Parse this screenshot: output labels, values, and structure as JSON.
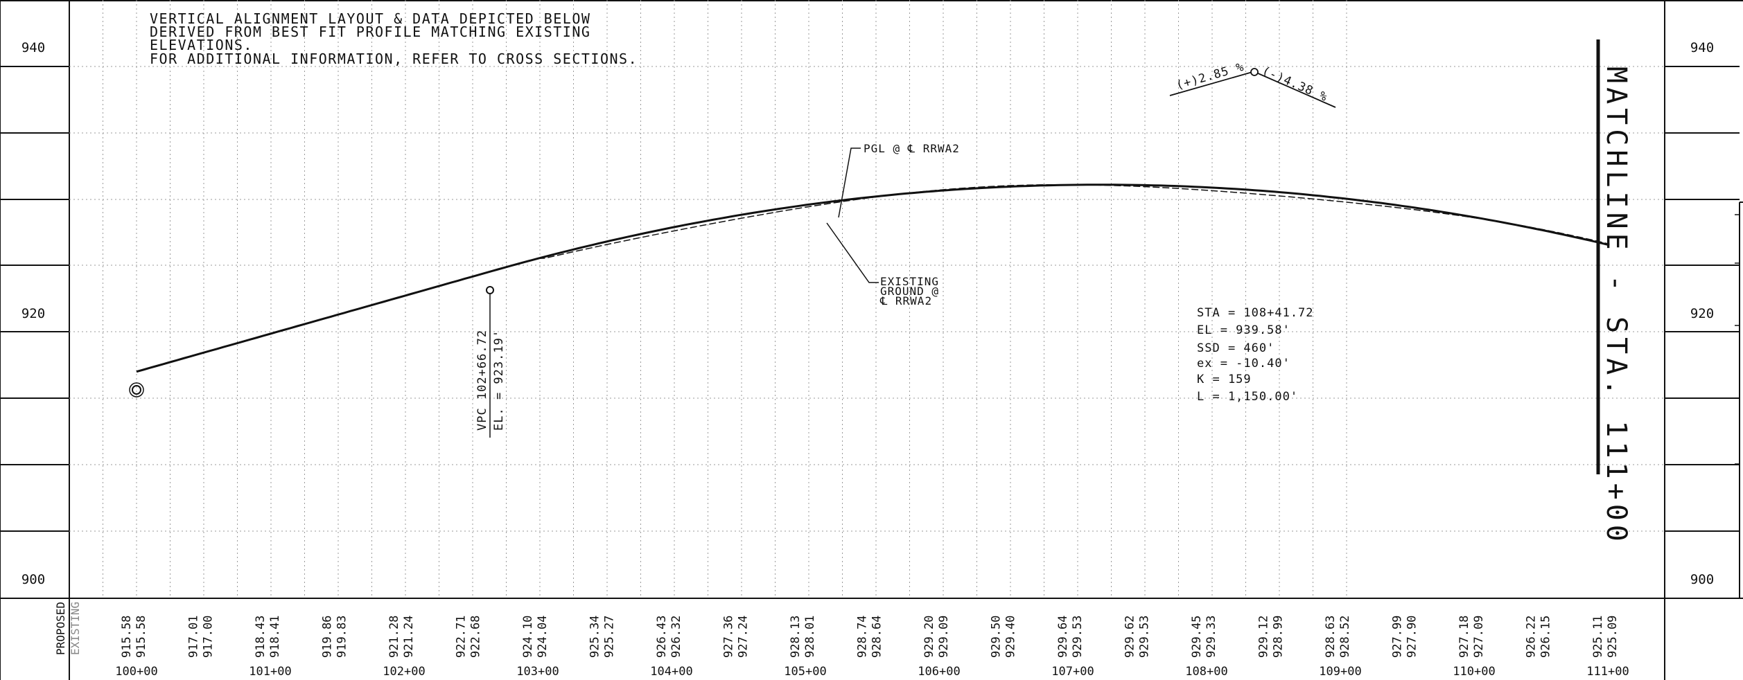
{
  "note": {
    "lines": [
      "VERTICAL ALIGNMENT LAYOUT & DATA DEPICTED BELOW",
      "DERIVED FROM BEST FIT PROFILE MATCHING EXISTING",
      "ELEVATIONS.",
      "FOR ADDITIONAL INFORMATION, REFER TO CROSS SECTIONS."
    ]
  },
  "elevation_labels": [
    "940",
    "920",
    "900"
  ],
  "callouts": {
    "pgl": "PGL @ ℄ RRWA2",
    "existing": [
      "EXISTING",
      "GROUND @",
      "℄ RRWA2"
    ]
  },
  "vpc": {
    "sta": "VPC 102+66.72",
    "el": "EL. = 923.19'"
  },
  "grades": {
    "in": "(+)2.85 %",
    "out": "(-)4.38 %"
  },
  "curve_data": [
    "STA = 108+41.72",
    "EL  = 939.58'",
    "SSD = 460'",
    "ex = -10.40'",
    "K = 159",
    "L   = 1,150.00'"
  ],
  "matchline": "MATCHLINE - STA. 111+00",
  "row_labels": {
    "proposed": "PROPOSED",
    "existing": "EXISTING"
  },
  "stations": [
    "100+00",
    "101+00",
    "102+00",
    "103+00",
    "104+00",
    "105+00",
    "106+00",
    "107+00",
    "108+00",
    "109+00",
    "110+00",
    "111+00"
  ],
  "profile_values": {
    "proposed": [
      "915.58",
      "917.01",
      "918.43",
      "919.86",
      "921.28",
      "922.71",
      "924.10",
      "925.34",
      "926.43",
      "927.36",
      "928.13",
      "928.74",
      "929.20",
      "929.50",
      "929.64",
      "929.62",
      "929.45",
      "929.12",
      "928.63",
      "927.99",
      "927.18",
      "926.22",
      "925.11"
    ],
    "existing": [
      "915.58",
      "917.00",
      "918.41",
      "919.83",
      "921.24",
      "922.68",
      "924.04",
      "925.27",
      "926.32",
      "927.24",
      "928.01",
      "928.64",
      "929.09",
      "929.40",
      "929.53",
      "929.53",
      "929.33",
      "928.99",
      "928.52",
      "927.90",
      "927.09",
      "926.15",
      "925.09"
    ]
  },
  "colors": {
    "line": "#111111",
    "grid": "#9a9a9a",
    "paper": "#ffffff"
  }
}
